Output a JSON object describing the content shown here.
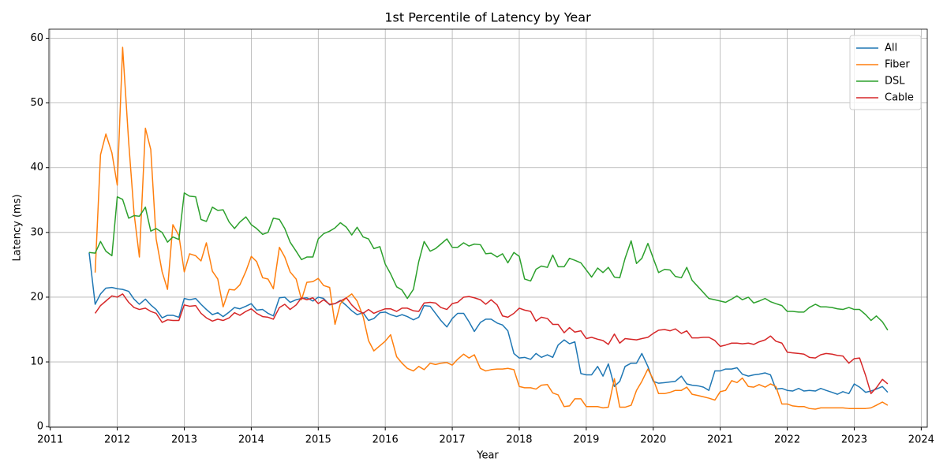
{
  "chart_data": {
    "type": "line",
    "title": "1st Percentile of Latency by Year",
    "x_label": "Year",
    "y_label": "Latency (ms)",
    "x": [
      2011.58,
      2011.67,
      2011.75,
      2011.83,
      2011.92,
      2012.0,
      2012.08,
      2012.17,
      2012.25,
      2012.33,
      2012.42,
      2012.5,
      2012.58,
      2012.67,
      2012.75,
      2012.83,
      2012.92,
      2013.0,
      2013.08,
      2013.17,
      2013.25,
      2013.33,
      2013.42,
      2013.5,
      2013.58,
      2013.67,
      2013.75,
      2013.83,
      2013.92,
      2014.0,
      2014.08,
      2014.17,
      2014.25,
      2014.33,
      2014.42,
      2014.5,
      2014.58,
      2014.67,
      2014.75,
      2014.83,
      2014.92,
      2015.0,
      2015.08,
      2015.17,
      2015.25,
      2015.33,
      2015.42,
      2015.5,
      2015.58,
      2015.67,
      2015.75,
      2015.83,
      2015.92,
      2016.0,
      2016.08,
      2016.17,
      2016.25,
      2016.33,
      2016.42,
      2016.5,
      2016.58,
      2016.67,
      2016.75,
      2016.83,
      2016.92,
      2017.0,
      2017.08,
      2017.17,
      2017.25,
      2017.33,
      2017.42,
      2017.5,
      2017.58,
      2017.67,
      2017.75,
      2017.83,
      2017.92,
      2018.0,
      2018.08,
      2018.17,
      2018.25,
      2018.33,
      2018.42,
      2018.5,
      2018.58,
      2018.67,
      2018.75,
      2018.83,
      2018.92,
      2019.0,
      2019.08,
      2019.17,
      2019.25,
      2019.33,
      2019.42,
      2019.5,
      2019.58,
      2019.67,
      2019.75,
      2019.83,
      2019.92,
      2020.0,
      2020.08,
      2020.17,
      2020.25,
      2020.33,
      2020.42,
      2020.5,
      2020.58,
      2020.67,
      2020.75,
      2020.83,
      2020.92,
      2021.0,
      2021.08,
      2021.17,
      2021.25,
      2021.33,
      2021.42,
      2021.5,
      2021.58,
      2021.67,
      2021.75,
      2021.83,
      2021.92,
      2022.0,
      2022.08,
      2022.17,
      2022.25,
      2022.33,
      2022.42,
      2022.5,
      2022.58,
      2022.67,
      2022.75,
      2022.83,
      2022.92,
      2023.0,
      2023.08,
      2023.17,
      2023.25,
      2023.33,
      2023.42,
      2023.5
    ],
    "series": [
      {
        "name": "All",
        "color": "#1f77b4",
        "values": [
          26.9,
          18.9,
          20.5,
          21.4,
          21.5,
          21.3,
          21.2,
          20.9,
          19.7,
          18.9,
          19.7,
          18.8,
          18.1,
          16.8,
          17.2,
          17.2,
          16.9,
          19.8,
          19.6,
          19.8,
          18.9,
          18.1,
          17.3,
          17.6,
          17.0,
          17.7,
          18.4,
          18.2,
          18.6,
          19.0,
          18.0,
          18.1,
          17.5,
          17.1,
          19.9,
          20.0,
          19.2,
          19.6,
          19.8,
          19.9,
          19.4,
          20.0,
          19.8,
          18.8,
          19.0,
          19.5,
          18.7,
          17.9,
          17.3,
          17.6,
          16.4,
          16.7,
          17.6,
          17.7,
          17.3,
          17.0,
          17.3,
          17.0,
          16.5,
          16.9,
          18.7,
          18.6,
          17.5,
          16.4,
          15.4,
          16.7,
          17.5,
          17.5,
          16.2,
          14.7,
          16.1,
          16.6,
          16.6,
          16.0,
          15.7,
          14.8,
          11.3,
          10.6,
          10.7,
          10.4,
          11.3,
          10.7,
          11.1,
          10.7,
          12.6,
          13.4,
          12.8,
          13.1,
          8.2,
          8.0,
          8.0,
          9.3,
          7.8,
          9.7,
          6.2,
          7.0,
          9.3,
          9.8,
          9.8,
          11.3,
          9.3,
          7.0,
          6.7,
          6.8,
          6.9,
          7.0,
          7.8,
          6.6,
          6.4,
          6.3,
          6.1,
          5.6,
          8.6,
          8.6,
          8.9,
          8.9,
          9.1,
          8.1,
          7.8,
          8.0,
          8.1,
          8.3,
          8.0,
          5.8,
          5.9,
          5.6,
          5.5,
          5.9,
          5.5,
          5.6,
          5.5,
          5.9,
          5.6,
          5.3,
          5.0,
          5.4,
          5.1,
          6.6,
          6.1,
          5.3,
          5.5,
          5.8,
          6.2,
          5.3
        ]
      },
      {
        "name": "Fiber",
        "color": "#ff7f0e",
        "values": [
          null,
          23.8,
          42.0,
          45.2,
          42.3,
          37.3,
          58.6,
          44.0,
          33.0,
          26.2,
          46.1,
          42.8,
          29.0,
          23.9,
          21.2,
          31.2,
          29.5,
          23.9,
          26.7,
          26.4,
          25.6,
          28.4,
          24.0,
          22.8,
          18.5,
          21.2,
          21.1,
          21.9,
          24.0,
          26.3,
          25.5,
          23.0,
          22.8,
          21.3,
          27.7,
          26.2,
          23.9,
          22.8,
          19.6,
          22.3,
          22.4,
          22.9,
          21.8,
          21.5,
          15.8,
          19.0,
          19.9,
          20.5,
          19.4,
          17.0,
          13.3,
          11.7,
          12.5,
          13.2,
          14.2,
          10.8,
          9.8,
          9.0,
          8.6,
          9.3,
          8.8,
          9.8,
          9.6,
          9.8,
          9.9,
          9.5,
          10.4,
          11.2,
          10.6,
          11.1,
          9.0,
          8.6,
          8.8,
          8.9,
          8.9,
          9.0,
          8.8,
          6.2,
          6.0,
          6.0,
          5.8,
          6.4,
          6.5,
          5.2,
          4.9,
          3.1,
          3.2,
          4.3,
          4.3,
          3.1,
          3.1,
          3.1,
          2.9,
          3.0,
          7.4,
          3.0,
          3.0,
          3.3,
          5.6,
          7.0,
          8.9,
          7.3,
          5.1,
          5.1,
          5.3,
          5.6,
          5.6,
          6.1,
          5.0,
          4.8,
          4.6,
          4.4,
          4.1,
          5.4,
          5.6,
          7.1,
          6.8,
          7.5,
          6.2,
          6.1,
          6.5,
          6.1,
          6.6,
          6.2,
          3.5,
          3.5,
          3.2,
          3.1,
          3.1,
          2.8,
          2.7,
          2.9,
          2.9,
          2.9,
          2.9,
          2.9,
          2.8,
          2.8,
          2.8,
          2.8,
          2.9,
          3.3,
          3.8,
          3.3
        ]
      },
      {
        "name": "DSL",
        "color": "#2ca02c",
        "values": [
          26.9,
          26.8,
          28.6,
          27.1,
          26.4,
          35.5,
          35.1,
          32.2,
          32.6,
          32.5,
          33.9,
          30.2,
          30.6,
          30.0,
          28.5,
          29.3,
          28.9,
          36.1,
          35.6,
          35.5,
          32.0,
          31.7,
          33.9,
          33.4,
          33.5,
          31.6,
          30.6,
          31.6,
          32.4,
          31.2,
          30.6,
          29.7,
          30.0,
          32.2,
          32.0,
          30.6,
          28.5,
          27.1,
          25.8,
          26.2,
          26.2,
          29.0,
          29.8,
          30.2,
          30.7,
          31.5,
          30.8,
          29.6,
          30.8,
          29.3,
          29.0,
          27.5,
          27.8,
          25.1,
          23.6,
          21.6,
          21.1,
          19.8,
          21.2,
          25.5,
          28.6,
          27.1,
          27.5,
          28.2,
          29.0,
          27.7,
          27.7,
          28.4,
          27.9,
          28.2,
          28.1,
          26.7,
          26.8,
          26.2,
          26.7,
          25.3,
          26.9,
          26.3,
          22.8,
          22.5,
          24.3,
          24.8,
          24.6,
          26.5,
          24.7,
          24.7,
          26.0,
          25.7,
          25.3,
          24.2,
          23.1,
          24.5,
          23.8,
          24.6,
          23.1,
          23.0,
          26.0,
          28.7,
          25.2,
          26.0,
          28.3,
          26.0,
          23.8,
          24.3,
          24.2,
          23.2,
          23.0,
          24.6,
          22.6,
          21.6,
          20.7,
          19.8,
          19.6,
          19.4,
          19.2,
          19.7,
          20.2,
          19.6,
          20.0,
          19.1,
          19.4,
          19.8,
          19.3,
          19.0,
          18.7,
          17.8,
          17.8,
          17.7,
          17.7,
          18.4,
          18.9,
          18.5,
          18.5,
          18.4,
          18.2,
          18.1,
          18.4,
          18.1,
          18.1,
          17.3,
          16.4,
          17.1,
          16.2,
          14.9
        ]
      },
      {
        "name": "Cable",
        "color": "#d62728",
        "values": [
          null,
          17.5,
          18.7,
          19.4,
          20.2,
          20.0,
          20.5,
          19.2,
          18.4,
          18.1,
          18.3,
          17.8,
          17.5,
          16.1,
          16.5,
          16.4,
          16.4,
          18.8,
          18.6,
          18.7,
          17.5,
          16.8,
          16.3,
          16.6,
          16.4,
          16.8,
          17.6,
          17.2,
          17.8,
          18.2,
          17.5,
          17.0,
          16.9,
          16.6,
          18.4,
          18.9,
          18.1,
          18.8,
          19.9,
          19.6,
          19.9,
          19.0,
          19.6,
          18.9,
          19.0,
          19.4,
          19.9,
          18.8,
          18.0,
          17.5,
          18.1,
          17.5,
          17.9,
          18.2,
          18.2,
          17.8,
          18.3,
          18.3,
          17.9,
          17.8,
          19.1,
          19.2,
          19.1,
          18.4,
          18.1,
          19.0,
          19.2,
          20.0,
          20.1,
          19.9,
          19.6,
          18.9,
          19.6,
          18.8,
          17.1,
          16.9,
          17.5,
          18.3,
          18.0,
          17.8,
          16.3,
          16.9,
          16.7,
          15.8,
          15.8,
          14.5,
          15.3,
          14.6,
          14.8,
          13.6,
          13.8,
          13.5,
          13.3,
          12.7,
          14.3,
          12.9,
          13.6,
          13.5,
          13.4,
          13.6,
          13.8,
          14.4,
          14.9,
          15.0,
          14.8,
          15.1,
          14.4,
          14.8,
          13.7,
          13.7,
          13.8,
          13.8,
          13.3,
          12.4,
          12.6,
          12.9,
          12.9,
          12.8,
          12.9,
          12.7,
          13.1,
          13.4,
          14.0,
          13.2,
          12.9,
          11.5,
          11.4,
          11.3,
          11.2,
          10.7,
          10.6,
          11.1,
          11.3,
          11.2,
          11.0,
          10.9,
          9.8,
          10.5,
          10.6,
          7.9,
          5.1,
          6.0,
          7.3,
          6.6
        ]
      }
    ],
    "xlim": [
      2010.98,
      2024.09
    ],
    "xticks": [
      2011,
      2012,
      2013,
      2014,
      2015,
      2016,
      2017,
      2018,
      2019,
      2020,
      2021,
      2022,
      2023,
      2024
    ],
    "ylim": [
      -0.1,
      61.4
    ],
    "yticks": [
      0,
      10,
      20,
      30,
      40,
      50,
      60
    ],
    "grid": true,
    "legend_position": "upper right"
  }
}
